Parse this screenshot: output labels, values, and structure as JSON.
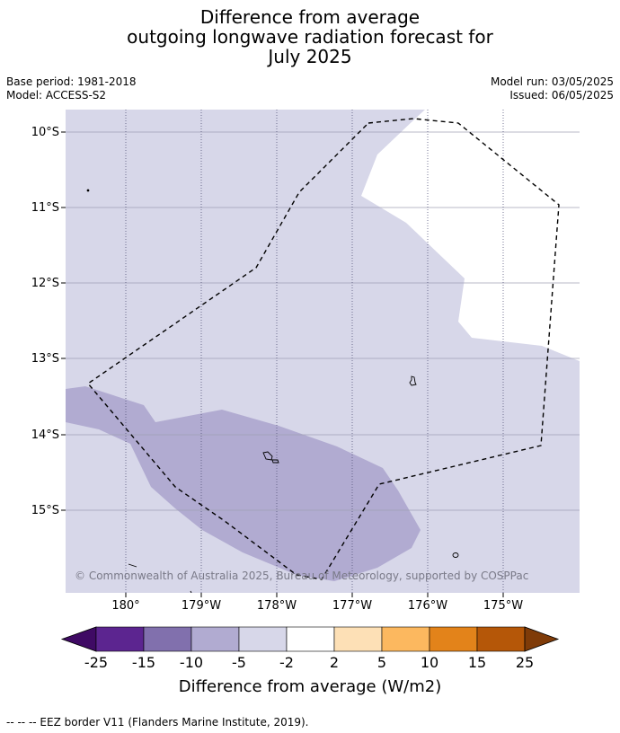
{
  "title": {
    "line1": "Difference from average",
    "line2": "outgoing longwave radiation forecast for",
    "line3": "July 2025"
  },
  "meta": {
    "base_period": "Base period: 1981-2018",
    "model": "Model: ACCESS-S2",
    "model_run": "Model run: 03/05/2025",
    "issued": "Issued: 06/05/2025"
  },
  "map": {
    "lat_labels": [
      "10°S",
      "11°S",
      "12°S",
      "13°S",
      "14°S",
      "15°S"
    ],
    "lon_labels": [
      "180°",
      "179°W",
      "178°W",
      "177°W",
      "176°W",
      "175°W"
    ],
    "copyright": "© Commonwealth of Australia 2025, Bureau of Meteorology, supported by COSPPac",
    "colors": {
      "light_band": "#d7d7e9",
      "mid_band": "#b1abd1",
      "neutral": "#ffffff"
    }
  },
  "colorbar": {
    "label": "Difference from average (W/m2)",
    "ticks": [
      "-25",
      "-15",
      "-10",
      "-5",
      "-2",
      "2",
      "5",
      "10",
      "15",
      "25"
    ],
    "colors": [
      "#3f0a64",
      "#5c2590",
      "#8170ad",
      "#b1abd1",
      "#d7d7e9",
      "#ffffff",
      "#fde0b6",
      "#fcb85f",
      "#e3831a",
      "#b55708",
      "#7f3b08"
    ]
  },
  "footnote": "--  --  -- EEZ border V11 (Flanders Marine Institute, 2019)."
}
